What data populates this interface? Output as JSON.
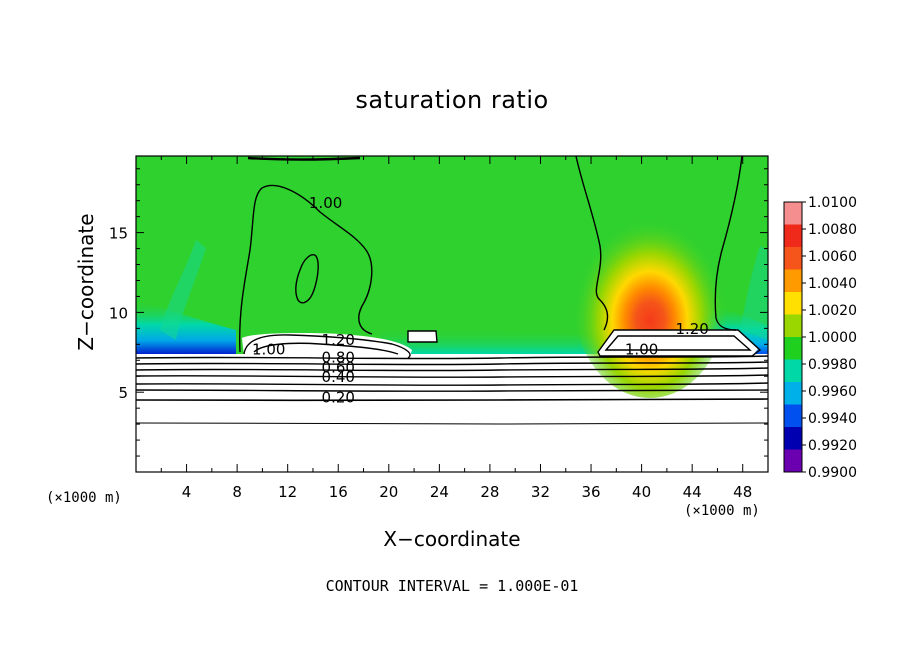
{
  "chart_data": {
    "type": "heatmap",
    "title": "saturation ratio",
    "xlabel": "X−coordinate",
    "ylabel": "Z−coordinate",
    "x_unit_left": "(×1000 m)",
    "x_unit_right": "(×1000 m)",
    "footer": "CONTOUR INTERVAL = 1.000E-01",
    "xlim": [
      0,
      50
    ],
    "ylim": [
      0,
      19.8
    ],
    "x_ticks": [
      "4",
      "8",
      "12",
      "16",
      "20",
      "24",
      "28",
      "32",
      "36",
      "40",
      "44",
      "48"
    ],
    "y_ticks": [
      "5",
      "10",
      "15"
    ],
    "colorbar": {
      "levels": [
        "1.0100",
        "1.0080",
        "1.0060",
        "1.0040",
        "1.0020",
        "1.0000",
        "0.9980",
        "0.9960",
        "0.9940",
        "0.9920",
        "0.9900"
      ],
      "colors": [
        "#f58f8f",
        "#ef2a1a",
        "#f5541a",
        "#ff9a00",
        "#ffe000",
        "#9ad600",
        "#1fd01f",
        "#00d8a8",
        "#00b0e8",
        "#0050f0",
        "#0000b0",
        "#6a00b0"
      ]
    },
    "background_color": "#2fd12f",
    "contour_labels": [
      {
        "text": "1.00",
        "x": 15.0,
        "z": 16.8
      },
      {
        "text": "1.20",
        "x": 44.0,
        "z": 8.9
      },
      {
        "text": "1.00",
        "x": 10.5,
        "z": 7.6
      },
      {
        "text": "1.00",
        "x": 40.0,
        "z": 7.6
      },
      {
        "text": "1.20",
        "x": 16.0,
        "z": 8.2
      },
      {
        "text": "0.80",
        "x": 16.0,
        "z": 7.1
      },
      {
        "text": "0.60",
        "x": 16.0,
        "z": 6.5
      },
      {
        "text": "0.40",
        "x": 16.0,
        "z": 5.9
      },
      {
        "text": "0.20",
        "x": 16.0,
        "z": 4.6
      }
    ],
    "grid": false,
    "legend_position": "right"
  }
}
